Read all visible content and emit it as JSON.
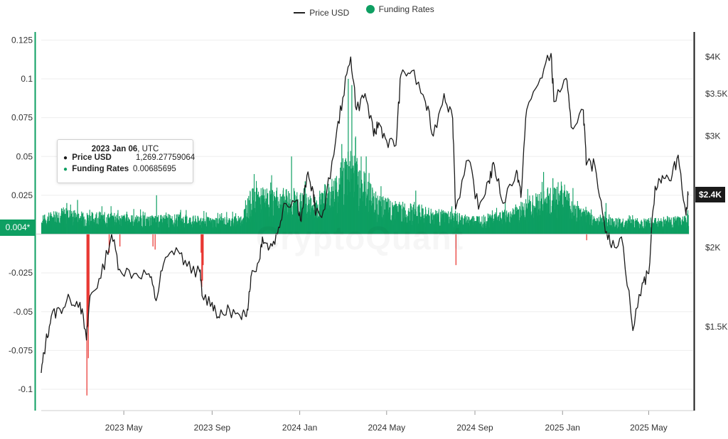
{
  "legend": {
    "price_label": "Price USD",
    "funding_label": "Funding Rates"
  },
  "watermark": "CryptoQuant",
  "tooltip": {
    "date": "2023 Jan 06",
    "tz": "UTC",
    "price_label": "Price USD",
    "price_value": "1,269.27759064",
    "funding_label": "Funding Rates",
    "funding_value": "0.00685695"
  },
  "current": {
    "funding_label": "0.004*",
    "price_label": "$2.4K"
  },
  "colors": {
    "positive": "#0e9f62",
    "negative": "#e8302b",
    "price_line": "#1a1a1a",
    "left_axis": "#0e9f62",
    "right_axis": "#1a1a1a"
  },
  "chart_data": {
    "type": "bar+line",
    "x_range": [
      "2023-01-06",
      "2025-06-25"
    ],
    "x_ticks": [
      "2023 May",
      "2023 Sep",
      "2024 Jan",
      "2024 May",
      "2024 Sep",
      "2025 Jan",
      "2025 May"
    ],
    "x_tick_dates": [
      "2023-05-01",
      "2023-09-01",
      "2024-01-01",
      "2024-05-01",
      "2024-09-01",
      "2025-01-01",
      "2025-05-01"
    ],
    "left_axis": {
      "ticks": [
        "0.125",
        "0.1",
        "0.075",
        "0.05",
        "0.025",
        "-0.025",
        "-0.05",
        "-0.075",
        "-0.1"
      ],
      "tick_values": [
        0.125,
        0.1,
        0.075,
        0.05,
        0.025,
        -0.025,
        -0.05,
        -0.075,
        -0.1
      ],
      "range": [
        -0.11,
        0.127
      ]
    },
    "right_axis": {
      "scale": "log",
      "ticks": [
        "$4K",
        "$3.5K",
        "$3K",
        "$2K",
        "$1.5K"
      ],
      "tick_values": [
        4000,
        3500,
        3000,
        2000,
        1500
      ],
      "range": [
        1130,
        4180
      ]
    },
    "series": [
      {
        "name": "Funding Rates",
        "kind": "bar",
        "envelope": [
          [
            "2023-01-06",
            0.012
          ],
          [
            "2023-02-01",
            0.018
          ],
          [
            "2023-03-01",
            0.015
          ],
          [
            "2023-04-15",
            0.014
          ],
          [
            "2023-06-01",
            0.012
          ],
          [
            "2023-07-15",
            0.013
          ],
          [
            "2023-09-01",
            0.011
          ],
          [
            "2023-10-10",
            0.012
          ],
          [
            "2023-10-25",
            0.03
          ],
          [
            "2023-11-15",
            0.03
          ],
          [
            "2023-12-15",
            0.03
          ],
          [
            "2024-01-20",
            0.025
          ],
          [
            "2024-02-20",
            0.04
          ],
          [
            "2024-03-10",
            0.06
          ],
          [
            "2024-03-25",
            0.045
          ],
          [
            "2024-04-20",
            0.025
          ],
          [
            "2024-06-01",
            0.02
          ],
          [
            "2024-07-15",
            0.016
          ],
          [
            "2024-08-25",
            0.012
          ],
          [
            "2024-10-15",
            0.016
          ],
          [
            "2024-11-20",
            0.026
          ],
          [
            "2024-12-10",
            0.03
          ],
          [
            "2024-12-30",
            0.035
          ],
          [
            "2025-01-20",
            0.02
          ],
          [
            "2025-02-15",
            0.012
          ],
          [
            "2025-04-01",
            0.01
          ],
          [
            "2025-06-25",
            0.012
          ]
        ],
        "spikes": [
          [
            "2023-02-10",
            0.02
          ],
          [
            "2023-02-25",
            0.022
          ],
          [
            "2023-06-15",
            0.025
          ],
          [
            "2023-11-10",
            0.03
          ],
          [
            "2023-12-20",
            0.05
          ],
          [
            "2024-01-08",
            0.034
          ],
          [
            "2024-02-28",
            0.058
          ],
          [
            "2024-03-08",
            0.1
          ],
          [
            "2024-03-13",
            0.096
          ],
          [
            "2024-03-18",
            0.062
          ],
          [
            "2024-04-02",
            0.05
          ],
          [
            "2024-06-10",
            0.028
          ],
          [
            "2024-12-05",
            0.04
          ],
          [
            "2024-12-18",
            0.036
          ],
          [
            "2025-03-02",
            0.02
          ]
        ],
        "negatives": [
          [
            "2023-03-10",
            -0.104
          ],
          [
            "2023-03-11",
            -0.06
          ],
          [
            "2023-03-12",
            -0.08
          ],
          [
            "2023-03-13",
            -0.045
          ],
          [
            "2023-04-10",
            -0.012
          ],
          [
            "2023-04-25",
            -0.008
          ],
          [
            "2023-06-10",
            -0.008
          ],
          [
            "2023-06-13",
            -0.01
          ],
          [
            "2023-08-16",
            -0.012
          ],
          [
            "2023-08-17",
            -0.034
          ],
          [
            "2023-08-18",
            -0.03
          ],
          [
            "2023-08-19",
            -0.02
          ],
          [
            "2024-08-05",
            -0.02
          ],
          [
            "2025-02-03",
            -0.004
          ]
        ]
      },
      {
        "name": "Price USD",
        "kind": "line",
        "values": [
          [
            "2023-01-06",
            1269
          ],
          [
            "2023-01-12",
            1410
          ],
          [
            "2023-01-20",
            1560
          ],
          [
            "2023-02-01",
            1600
          ],
          [
            "2023-02-15",
            1660
          ],
          [
            "2023-03-01",
            1640
          ],
          [
            "2023-03-10",
            1430
          ],
          [
            "2023-03-15",
            1680
          ],
          [
            "2023-03-30",
            1790
          ],
          [
            "2023-04-14",
            2100
          ],
          [
            "2023-04-25",
            1850
          ],
          [
            "2023-05-15",
            1820
          ],
          [
            "2023-06-05",
            1820
          ],
          [
            "2023-06-15",
            1650
          ],
          [
            "2023-06-25",
            1880
          ],
          [
            "2023-07-13",
            2000
          ],
          [
            "2023-07-28",
            1870
          ],
          [
            "2023-08-15",
            1830
          ],
          [
            "2023-08-18",
            1680
          ],
          [
            "2023-09-01",
            1640
          ],
          [
            "2023-09-11",
            1550
          ],
          [
            "2023-09-25",
            1600
          ],
          [
            "2023-10-12",
            1540
          ],
          [
            "2023-10-20",
            1600
          ],
          [
            "2023-10-25",
            1800
          ],
          [
            "2023-11-05",
            1900
          ],
          [
            "2023-11-10",
            2080
          ],
          [
            "2023-11-20",
            2000
          ],
          [
            "2023-12-01",
            2100
          ],
          [
            "2023-12-10",
            2350
          ],
          [
            "2023-12-28",
            2380
          ],
          [
            "2024-01-03",
            2200
          ],
          [
            "2024-01-11",
            2600
          ],
          [
            "2024-01-20",
            2450
          ],
          [
            "2024-01-23",
            2250
          ],
          [
            "2024-02-05",
            2300
          ],
          [
            "2024-02-20",
            2950
          ],
          [
            "2024-03-01",
            3450
          ],
          [
            "2024-03-12",
            4000
          ],
          [
            "2024-03-20",
            3300
          ],
          [
            "2024-04-01",
            3500
          ],
          [
            "2024-04-13",
            3000
          ],
          [
            "2024-04-20",
            3150
          ],
          [
            "2024-05-01",
            2950
          ],
          [
            "2024-05-14",
            2900
          ],
          [
            "2024-05-21",
            3750
          ],
          [
            "2024-06-05",
            3800
          ],
          [
            "2024-06-24",
            3400
          ],
          [
            "2024-07-05",
            3000
          ],
          [
            "2024-07-20",
            3500
          ],
          [
            "2024-08-01",
            3200
          ],
          [
            "2024-08-05",
            2300
          ],
          [
            "2024-08-23",
            2750
          ],
          [
            "2024-09-06",
            2300
          ],
          [
            "2024-09-20",
            2550
          ],
          [
            "2024-09-28",
            2700
          ],
          [
            "2024-10-10",
            2350
          ],
          [
            "2024-10-29",
            2650
          ],
          [
            "2024-11-04",
            2400
          ],
          [
            "2024-11-12",
            3300
          ],
          [
            "2024-12-01",
            3700
          ],
          [
            "2024-12-16",
            4050
          ],
          [
            "2024-12-20",
            3400
          ],
          [
            "2025-01-06",
            3700
          ],
          [
            "2025-01-13",
            3100
          ],
          [
            "2025-01-30",
            3300
          ],
          [
            "2025-02-03",
            2700
          ],
          [
            "2025-02-15",
            2700
          ],
          [
            "2025-02-28",
            2200
          ],
          [
            "2025-03-10",
            2000
          ],
          [
            "2025-03-24",
            2080
          ],
          [
            "2025-04-09",
            1480
          ],
          [
            "2025-04-22",
            1760
          ],
          [
            "2025-05-01",
            1820
          ],
          [
            "2025-05-10",
            2500
          ],
          [
            "2025-05-20",
            2600
          ],
          [
            "2025-06-01",
            2550
          ],
          [
            "2025-06-11",
            2800
          ],
          [
            "2025-06-22",
            2250
          ],
          [
            "2025-06-25",
            2420
          ]
        ]
      }
    ]
  }
}
